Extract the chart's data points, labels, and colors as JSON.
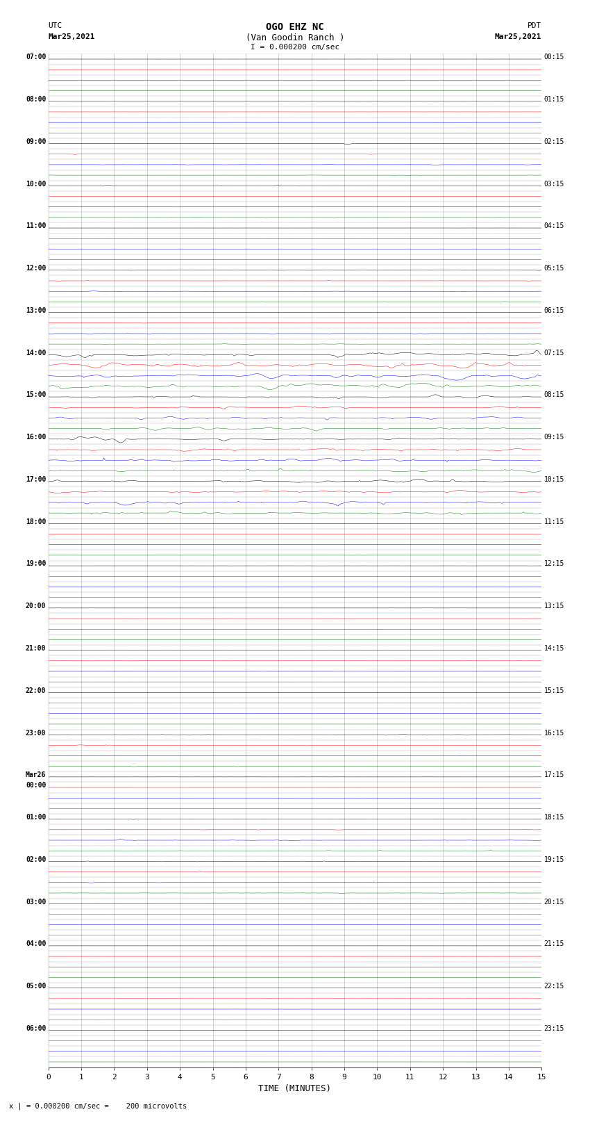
{
  "title_line1": "OGO EHZ NC",
  "title_line2": "(Van Goodin Ranch )",
  "title_scale": "I = 0.000200 cm/sec",
  "label_left_top": "UTC",
  "label_left_date": "Mar25,2021",
  "label_right_top": "PDT",
  "label_right_date": "Mar25,2021",
  "xlabel": "TIME (MINUTES)",
  "footer": "x | = 0.000200 cm/sec =    200 microvolts",
  "bg_color": "#ffffff",
  "trace_colors": [
    "black",
    "red",
    "blue",
    "green"
  ],
  "left_labels_utc": [
    "07:00",
    "08:00",
    "09:00",
    "10:00",
    "11:00",
    "12:00",
    "13:00",
    "14:00",
    "15:00",
    "16:00",
    "17:00",
    "18:00",
    "19:00",
    "20:00",
    "21:00",
    "22:00",
    "23:00",
    "Mar26",
    "00:00",
    "01:00",
    "02:00",
    "03:00",
    "04:00",
    "05:00",
    "06:00"
  ],
  "right_labels_pdt": [
    "00:15",
    "01:15",
    "02:15",
    "03:15",
    "04:15",
    "05:15",
    "06:15",
    "07:15",
    "08:15",
    "09:15",
    "10:15",
    "11:15",
    "12:15",
    "13:15",
    "14:15",
    "15:15",
    "16:15",
    "17:15",
    "18:15",
    "19:15",
    "20:15",
    "21:15",
    "22:15",
    "23:15"
  ],
  "num_rows": 96,
  "xmin": 0,
  "xmax": 15,
  "xticks": [
    0,
    1,
    2,
    3,
    4,
    5,
    6,
    7,
    8,
    9,
    10,
    11,
    12,
    13,
    14,
    15
  ]
}
